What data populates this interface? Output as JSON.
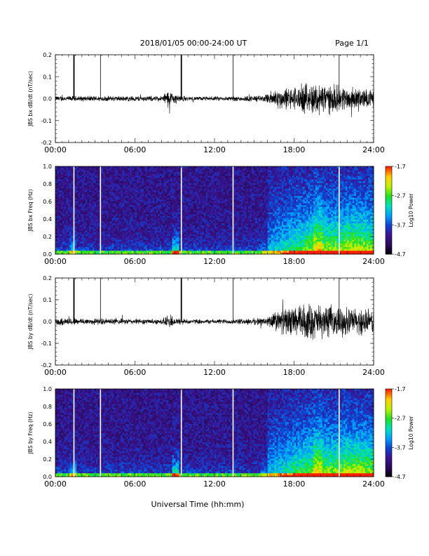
{
  "header": {
    "title": "2018/01/05  00:00-24:00 UT",
    "page": "Page 1/1"
  },
  "x_axis_label": "Universal Time (hh:mm)",
  "colors": {
    "trace": "#000000",
    "colormap": [
      "#000000",
      "#2a0a5a",
      "#3a1390",
      "#1040d0",
      "#00a0ff",
      "#00e0c0",
      "#20e020",
      "#c0f000",
      "#ffd000",
      "#ff2000"
    ]
  },
  "chart_data": [
    {
      "id": "bx_timeseries",
      "type": "line",
      "ylabel": "JBS bx dB/dt (nT/sec)",
      "xlim": [
        0,
        24
      ],
      "ylim": [
        -0.2,
        0.2
      ],
      "xticks": [
        "00:00",
        "06:00",
        "12:00",
        "18:00",
        "24:00"
      ],
      "yticks": [
        "0.2",
        "0.1",
        "0.0",
        "-0.1",
        "-0.2"
      ],
      "spikes_hours": [
        1.4,
        3.4,
        9.5,
        13.4,
        21.4
      ],
      "activity_profile": {
        "hours": [
          0,
          2,
          4,
          6,
          8,
          8.5,
          9.2,
          10,
          12,
          14,
          15.8,
          16.5,
          18,
          19,
          20,
          21,
          22,
          23,
          24
        ],
        "amplitude": [
          0.008,
          0.008,
          0.008,
          0.008,
          0.008,
          0.025,
          0.012,
          0.006,
          0.006,
          0.008,
          0.01,
          0.03,
          0.035,
          0.045,
          0.05,
          0.04,
          0.035,
          0.03,
          0.025
        ]
      }
    },
    {
      "id": "bx_spectrogram",
      "type": "heatmap",
      "ylabel": "JBS bx Freq (Hz)",
      "xlim": [
        0,
        24
      ],
      "ylim": [
        0.0,
        1.0
      ],
      "xticks": [
        "00:00",
        "06:00",
        "12:00",
        "18:00",
        "24:00"
      ],
      "yticks": [
        "1.0",
        "0.8",
        "0.6",
        "0.4",
        "0.2",
        "0.0"
      ],
      "colorbar": {
        "label": "Log10 Power",
        "ticks": [
          "-1.7",
          "-2.7",
          "-3.7",
          "-4.7"
        ],
        "range": [
          -4.7,
          -1.7
        ]
      },
      "gap_lines_hours": [
        1.4,
        3.4,
        9.5,
        13.4,
        21.4
      ]
    },
    {
      "id": "by_timeseries",
      "type": "line",
      "ylabel": "JBS by dB/dt (nT/sec)",
      "xlim": [
        0,
        24
      ],
      "ylim": [
        -0.2,
        0.2
      ],
      "xticks": [
        "00:00",
        "06:00",
        "12:00",
        "18:00",
        "24:00"
      ],
      "yticks": [
        "0.2",
        "0.1",
        "0.0",
        "-0.1",
        "-0.2"
      ],
      "spikes_hours": [
        1.4,
        3.4,
        9.5,
        13.4,
        21.4
      ],
      "activity_profile": {
        "hours": [
          0,
          2,
          4,
          6,
          8,
          8.5,
          9.2,
          10,
          12,
          14,
          15.8,
          16.5,
          18,
          19,
          20,
          21,
          22,
          23,
          24
        ],
        "amplitude": [
          0.012,
          0.01,
          0.009,
          0.008,
          0.008,
          0.02,
          0.012,
          0.007,
          0.007,
          0.008,
          0.012,
          0.03,
          0.045,
          0.055,
          0.05,
          0.045,
          0.04,
          0.04,
          0.035
        ]
      }
    },
    {
      "id": "by_spectrogram",
      "type": "heatmap",
      "ylabel": "JBS by Freq (Hz)",
      "xlim": [
        0,
        24
      ],
      "ylim": [
        0.0,
        1.0
      ],
      "xticks": [
        "00:00",
        "06:00",
        "12:00",
        "18:00",
        "24:00"
      ],
      "yticks": [
        "1.0",
        "0.8",
        "0.6",
        "0.4",
        "0.2",
        "0.0"
      ],
      "colorbar": {
        "label": "Log10 Power",
        "ticks": [
          "-1.7",
          "-2.7",
          "-3.7",
          "-4.7"
        ],
        "range": [
          -4.7,
          -1.7
        ]
      },
      "gap_lines_hours": [
        1.4,
        3.4,
        9.5,
        13.4,
        21.4
      ]
    }
  ]
}
